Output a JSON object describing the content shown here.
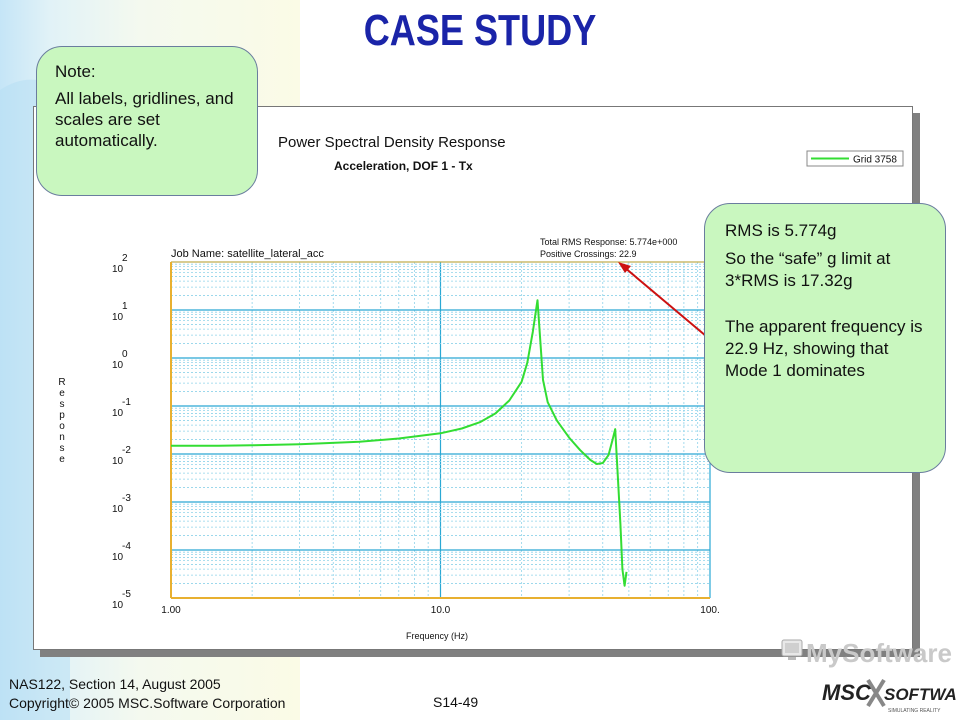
{
  "slide": {
    "title": "CASE STUDY",
    "note": {
      "heading": "Note:",
      "body": "All labels, gridlines, and scales are set automatically."
    },
    "rms_callout": {
      "line1": "RMS is 5.774g",
      "line2": "So the “safe” g limit at 3*RMS is 17.32g",
      "line3": "The apparent frequency is 22.9 Hz, showing that Mode 1 dominates"
    },
    "footer": {
      "line1": "NAS122, Section 14, August 2005",
      "line2": "Copyright© 2005 MSC.Software Corporation",
      "page": "S14-49"
    },
    "logo": {
      "wordmark": "MySoftware",
      "brand": "MSC SOFTWARE",
      "tagline": "SIMULATING REALITY"
    },
    "colors": {
      "title": "#1a24a8",
      "callout_fill": "#c9f7bf",
      "curve": "#33dd33",
      "grid": "#33bbdd",
      "arrow": "#cc1111"
    }
  },
  "chart_data": {
    "type": "line",
    "title": "Power Spectral Density Response",
    "subtitle": "Acceleration, DOF 1 - Tx",
    "legend": [
      "Grid 3758"
    ],
    "legend_position": "top-right",
    "job_name": "Job Name: satellite_lateral_acc",
    "annotations": [
      "Total RMS Response: 5.774e+000",
      "Positive Crossings: 22.9"
    ],
    "xlabel": "Frequency (Hz)",
    "ylabel": "Response",
    "x_scale": "log",
    "y_scale": "log",
    "xlim": [
      1,
      100
    ],
    "ylim": [
      1e-05,
      100
    ],
    "x_ticks": [
      "1.00",
      "10.0",
      "100."
    ],
    "y_ticks": [
      {
        "base": "10",
        "exp": "2"
      },
      {
        "base": "10",
        "exp": "1"
      },
      {
        "base": "10",
        "exp": "0"
      },
      {
        "base": "10",
        "exp": "-1"
      },
      {
        "base": "10",
        "exp": "-2"
      },
      {
        "base": "10",
        "exp": "-3"
      },
      {
        "base": "10",
        "exp": "-4"
      },
      {
        "base": "10",
        "exp": "-5"
      }
    ],
    "grid": true,
    "series": [
      {
        "name": "Grid 3758",
        "x": [
          1.0,
          1.5,
          2,
          3,
          5,
          7,
          10,
          12,
          14,
          16,
          18,
          20,
          21,
          22,
          22.9,
          24,
          25,
          27,
          30,
          33,
          36,
          38,
          40,
          42,
          43.5,
          44.5,
          45.5,
          46.5,
          47.3,
          48.2,
          49
        ],
        "y": [
          0.0148,
          0.0149,
          0.0152,
          0.016,
          0.018,
          0.021,
          0.027,
          0.034,
          0.046,
          0.07,
          0.13,
          0.32,
          0.8,
          3.5,
          16.0,
          0.35,
          0.12,
          0.05,
          0.022,
          0.012,
          0.0075,
          0.0062,
          0.0065,
          0.0095,
          0.02,
          0.033,
          0.0035,
          0.00035,
          4e-05,
          1.8e-05,
          3.5e-05
        ]
      }
    ]
  }
}
